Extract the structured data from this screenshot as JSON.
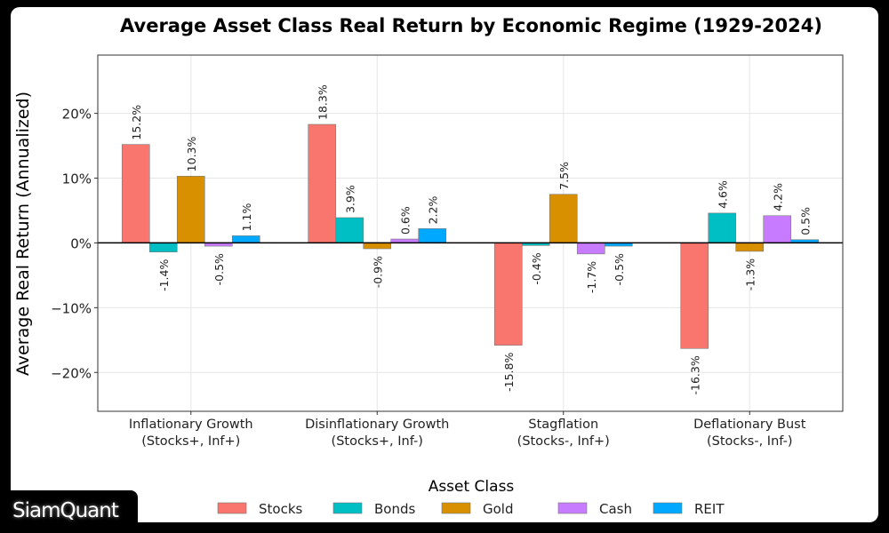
{
  "chart_data": {
    "type": "bar",
    "title": "Average Asset Class Real Return by Economic Regime (1929-2024)",
    "xlabel": "",
    "ylabel": "Average Real Return (Annualized)",
    "ylim": [
      -26,
      29
    ],
    "yticks": [
      -20,
      -10,
      0,
      10,
      20
    ],
    "ytick_labels": [
      "−20%",
      "−10%",
      "0%",
      "10%",
      "20%"
    ],
    "grid": true,
    "categories": [
      "Inflationary Growth\n(Stocks+, Inf+)",
      "Disinflationary Growth\n(Stocks+, Inf-)",
      "Stagflation\n(Stocks-, Inf+)",
      "Deflationary Bust\n(Stocks-, Inf-)"
    ],
    "category_lines": [
      [
        "Inflationary Growth",
        "(Stocks+, Inf+)"
      ],
      [
        "Disinflationary Growth",
        "(Stocks+, Inf-)"
      ],
      [
        "Stagflation",
        "(Stocks-, Inf+)"
      ],
      [
        "Deflationary Bust",
        "(Stocks-, Inf-)"
      ]
    ],
    "series": [
      {
        "name": "Stocks",
        "color": "#F8766D",
        "values": [
          15.2,
          18.3,
          -15.8,
          -16.3
        ],
        "labels": [
          "15.2%",
          "18.3%",
          "-15.8%",
          "-16.3%"
        ]
      },
      {
        "name": "Bonds",
        "color": "#00BFC4",
        "values": [
          -1.4,
          3.9,
          -0.4,
          4.6
        ],
        "labels": [
          "-1.4%",
          "3.9%",
          "-0.4%",
          "4.6%"
        ]
      },
      {
        "name": "Gold",
        "color": "#D89000",
        "values": [
          10.3,
          -0.9,
          7.5,
          -1.3
        ],
        "labels": [
          "10.3%",
          "-0.9%",
          "7.5%",
          "-1.3%"
        ]
      },
      {
        "name": "Cash",
        "color": "#C77CFF",
        "values": [
          -0.5,
          0.6,
          -1.7,
          4.2
        ],
        "labels": [
          "-0.5%",
          "0.6%",
          "-1.7%",
          "4.2%"
        ]
      },
      {
        "name": "REIT",
        "color": "#00A9FF",
        "values": [
          1.1,
          2.2,
          -0.5,
          0.5
        ],
        "labels": [
          "1.1%",
          "2.2%",
          "-0.5%",
          "0.5%"
        ]
      }
    ],
    "legend": {
      "title": "Asset Class",
      "placement": "bottom"
    }
  },
  "branding": {
    "logo_text": "SiamQuant"
  }
}
